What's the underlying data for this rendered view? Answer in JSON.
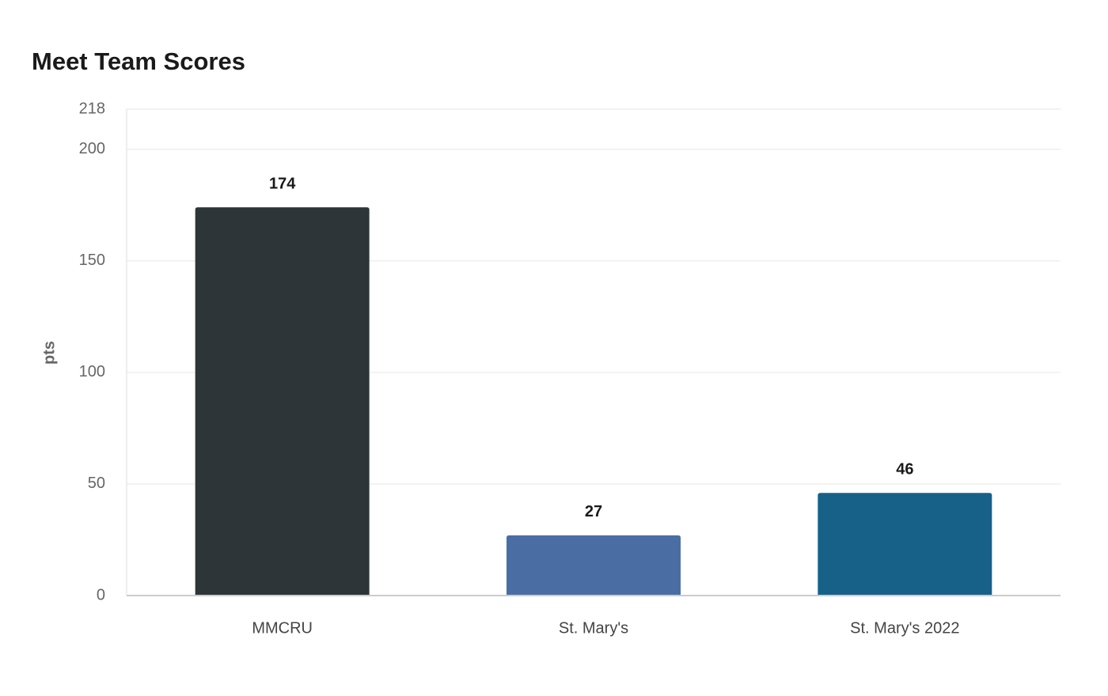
{
  "chart_data": {
    "type": "bar",
    "title": "Meet Team Scores",
    "y_label": "pts",
    "categories": [
      "MMCRU",
      "St. Mary's",
      "St. Mary's 2022"
    ],
    "values": [
      174,
      27,
      46
    ],
    "colors": [
      "#2e3538",
      "#4a6ea3",
      "#176189"
    ],
    "ylim": [
      0,
      218
    ],
    "yticks": [
      0,
      50,
      100,
      150,
      200,
      218
    ],
    "grid": true
  }
}
